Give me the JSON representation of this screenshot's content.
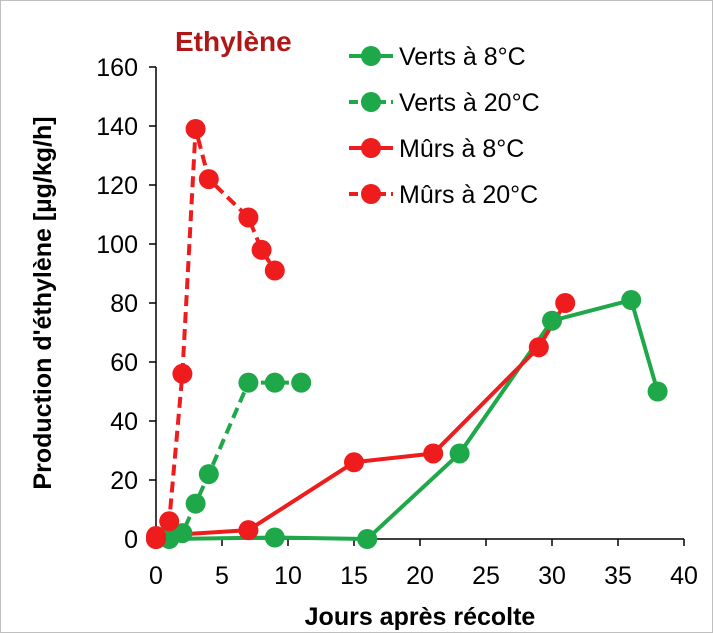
{
  "chart_data": {
    "type": "line",
    "title": "Ethylène",
    "xlabel": "Jours après récolte",
    "ylabel": "Production d'éthylène [µg/kg/h]",
    "xlim": [
      0,
      40
    ],
    "ylim": [
      0,
      160
    ],
    "xticks": [
      "0",
      "5",
      "10",
      "15",
      "20",
      "25",
      "30",
      "35",
      "40"
    ],
    "yticks": [
      "0",
      "20",
      "40",
      "60",
      "80",
      "100",
      "120",
      "140",
      "160"
    ],
    "grid": false,
    "legend_position": "top-right",
    "series": [
      {
        "name": "Verts à 8°C",
        "color": "#1fa84a",
        "line_style": "solid",
        "x": [
          0,
          1,
          9,
          16,
          23,
          30,
          36,
          38
        ],
        "y": [
          0,
          0,
          0.5,
          0,
          29,
          74,
          81,
          50
        ]
      },
      {
        "name": "Verts à 20°C",
        "color": "#1fa84a",
        "line_style": "dashed",
        "x": [
          0,
          1,
          2,
          3,
          4,
          7,
          9,
          11
        ],
        "y": [
          0,
          0.5,
          2,
          12,
          22,
          53,
          53,
          53
        ]
      },
      {
        "name": "Mûrs à 8°C",
        "color": "#ee1c1c",
        "line_style": "solid",
        "x": [
          0,
          7,
          15,
          21,
          29,
          31
        ],
        "y": [
          1,
          3,
          26,
          29,
          65,
          80
        ]
      },
      {
        "name": "Mûrs à 20°C",
        "color": "#ee1c1c",
        "line_style": "dashed",
        "x": [
          0,
          1,
          2,
          3,
          4,
          7,
          8,
          9
        ],
        "y": [
          0,
          6,
          56,
          139,
          122,
          109,
          98,
          91
        ]
      }
    ]
  },
  "title_color": "#b01818"
}
